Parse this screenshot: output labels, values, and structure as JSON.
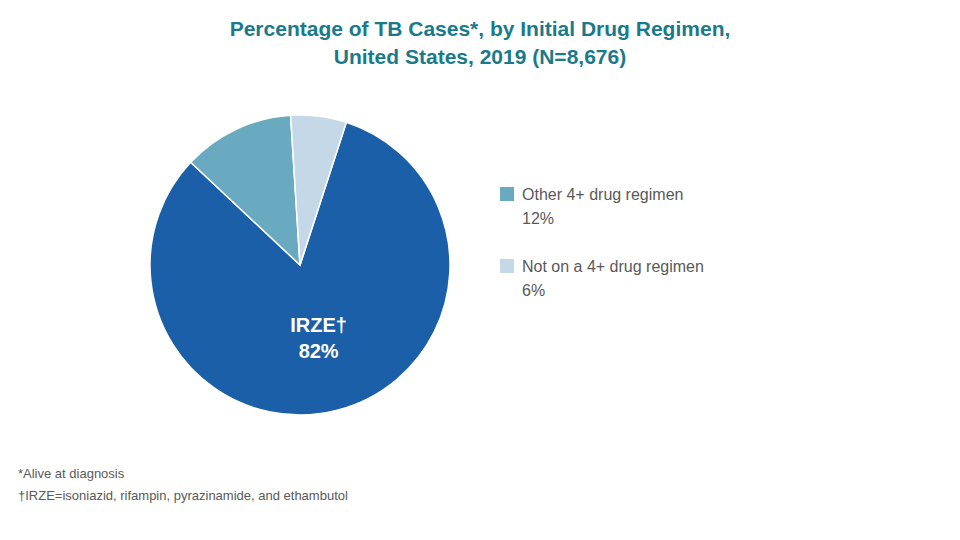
{
  "chart_data": {
    "type": "pie",
    "title": "Percentage of TB Cases*, by Initial Drug Regimen,",
    "subtitle": "United States, 2019 (N=8,676)",
    "categories": [
      "IRZE†",
      "Other 4+ drug regimen",
      "Not on a 4+ drug regimen"
    ],
    "values": [
      82,
      12,
      6
    ],
    "value_labels": [
      "82%",
      "12%",
      "6%"
    ],
    "data_labels": true,
    "colors": [
      "#1a5fa8",
      "#6aaac0",
      "#c5d8e8"
    ],
    "annotations": [
      "*Alive at diagnosis",
      "†IRZE=isoniazid, rifampin, pyrazinamide, and ethambutol"
    ]
  }
}
